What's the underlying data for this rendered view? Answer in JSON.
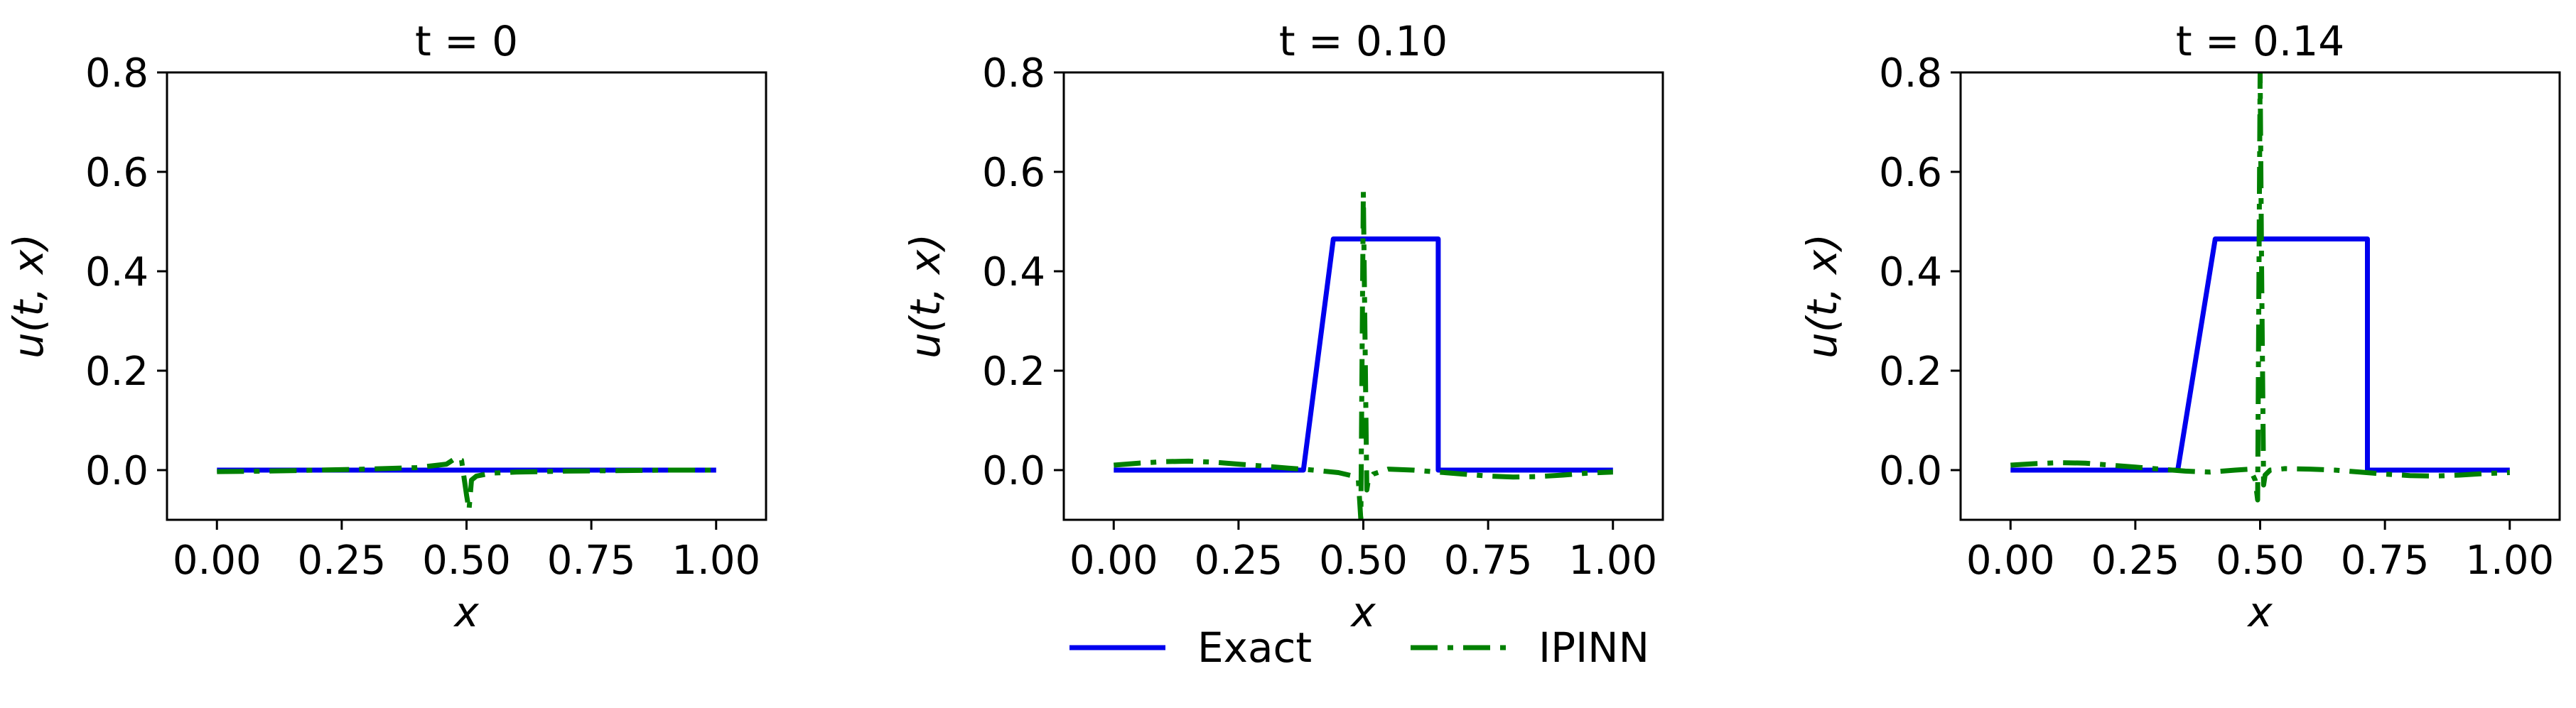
{
  "colors": {
    "exact": "#0000ee",
    "ipinn": "#008000"
  },
  "legend": {
    "placement": "bottom-center",
    "entries": [
      "Exact",
      "IPINN"
    ]
  },
  "chart_data": [
    {
      "type": "line",
      "title": "t = 0",
      "xlabel": "x",
      "ylabel": "u(t, x)",
      "xlim": [
        -0.1,
        1.1
      ],
      "ylim": [
        -0.1,
        0.8
      ],
      "xticks": [
        0.0,
        0.25,
        0.5,
        0.75,
        1.0
      ],
      "xtick_labels": [
        "0.00",
        "0.25",
        "0.50",
        "0.75",
        "1.00"
      ],
      "yticks": [
        0.0,
        0.2,
        0.4,
        0.6,
        0.8
      ],
      "ytick_labels": [
        "0.0",
        "0.2",
        "0.4",
        "0.6",
        "0.8"
      ],
      "grid": false,
      "series": [
        {
          "name": "Exact",
          "style": "solid",
          "x": [
            0.0,
            1.0
          ],
          "y": [
            0.0,
            0.0
          ]
        },
        {
          "name": "IPINN",
          "style": "dashdot",
          "x": [
            0.0,
            0.1,
            0.2,
            0.3,
            0.4,
            0.46,
            0.48,
            0.49,
            0.5,
            0.505,
            0.51,
            0.52,
            0.55,
            0.6,
            0.7,
            0.8,
            0.9,
            1.0
          ],
          "y": [
            -0.003,
            -0.002,
            0.0,
            0.002,
            0.005,
            0.012,
            0.025,
            0.02,
            -0.05,
            -0.08,
            -0.02,
            -0.012,
            -0.006,
            -0.004,
            -0.002,
            -0.001,
            0.0,
            0.0
          ]
        }
      ]
    },
    {
      "type": "line",
      "title": "t = 0.10",
      "xlabel": "x",
      "ylabel": "u(t, x)",
      "xlim": [
        -0.1,
        1.1
      ],
      "ylim": [
        -0.1,
        0.8
      ],
      "xticks": [
        0.0,
        0.25,
        0.5,
        0.75,
        1.0
      ],
      "xtick_labels": [
        "0.00",
        "0.25",
        "0.50",
        "0.75",
        "1.00"
      ],
      "yticks": [
        0.0,
        0.2,
        0.4,
        0.6,
        0.8
      ],
      "ytick_labels": [
        "0.0",
        "0.2",
        "0.4",
        "0.6",
        "0.8"
      ],
      "grid": false,
      "series": [
        {
          "name": "Exact",
          "style": "solid",
          "x": [
            0.0,
            0.38,
            0.44,
            0.65,
            0.65,
            1.0
          ],
          "y": [
            0.0,
            0.0,
            0.465,
            0.465,
            0.0,
            0.0
          ]
        },
        {
          "name": "IPINN",
          "style": "dashdot",
          "x": [
            0.0,
            0.05,
            0.1,
            0.15,
            0.2,
            0.25,
            0.3,
            0.35,
            0.4,
            0.45,
            0.48,
            0.49,
            0.495,
            0.5,
            0.503,
            0.507,
            0.51,
            0.52,
            0.55,
            0.6,
            0.65,
            0.7,
            0.75,
            0.8,
            0.85,
            0.9,
            0.95,
            1.0
          ],
          "y": [
            0.01,
            0.014,
            0.017,
            0.018,
            0.016,
            0.012,
            0.008,
            0.004,
            0.0,
            -0.005,
            -0.012,
            -0.02,
            -0.1,
            0.56,
            0.3,
            -0.04,
            -0.02,
            -0.008,
            0.002,
            0.0,
            -0.004,
            -0.008,
            -0.012,
            -0.014,
            -0.013,
            -0.01,
            -0.006,
            -0.004
          ]
        }
      ]
    },
    {
      "type": "line",
      "title": "t = 0.14",
      "xlabel": "x",
      "ylabel": "u(t, x)",
      "xlim": [
        -0.1,
        1.1
      ],
      "ylim": [
        -0.1,
        0.8
      ],
      "xticks": [
        0.0,
        0.25,
        0.5,
        0.75,
        1.0
      ],
      "xtick_labels": [
        "0.00",
        "0.25",
        "0.50",
        "0.75",
        "1.00"
      ],
      "yticks": [
        0.0,
        0.2,
        0.4,
        0.6,
        0.8
      ],
      "ytick_labels": [
        "0.0",
        "0.2",
        "0.4",
        "0.6",
        "0.8"
      ],
      "grid": false,
      "series": [
        {
          "name": "Exact",
          "style": "solid",
          "x": [
            0.0,
            0.335,
            0.41,
            0.715,
            0.715,
            1.0
          ],
          "y": [
            0.0,
            0.0,
            0.465,
            0.465,
            0.0,
            0.0
          ]
        },
        {
          "name": "IPINN",
          "style": "dashdot",
          "x": [
            0.0,
            0.05,
            0.1,
            0.15,
            0.2,
            0.25,
            0.3,
            0.35,
            0.4,
            0.45,
            0.48,
            0.49,
            0.495,
            0.5,
            0.503,
            0.507,
            0.51,
            0.52,
            0.55,
            0.6,
            0.65,
            0.7,
            0.75,
            0.8,
            0.85,
            0.9,
            0.95,
            1.0
          ],
          "y": [
            0.01,
            0.013,
            0.015,
            0.014,
            0.01,
            0.006,
            0.002,
            -0.002,
            -0.004,
            0.0,
            0.002,
            -0.02,
            -0.06,
            0.8,
            0.4,
            -0.03,
            -0.01,
            0.0,
            0.003,
            0.002,
            0.0,
            -0.004,
            -0.008,
            -0.011,
            -0.012,
            -0.01,
            -0.007,
            -0.005
          ]
        }
      ]
    }
  ]
}
